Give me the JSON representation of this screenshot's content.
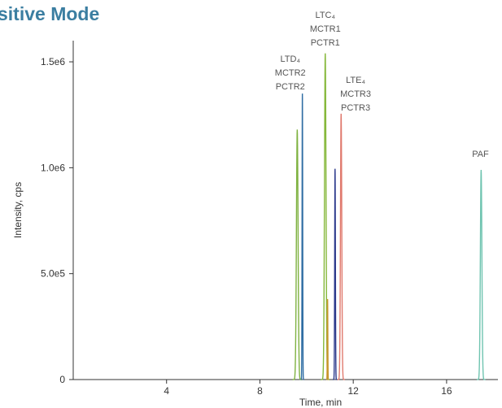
{
  "chart_data": {
    "type": "line",
    "title": "sitive Mode",
    "xlabel": "Time, min",
    "ylabel": "Intensity, cps",
    "xlim": [
      0,
      18.2
    ],
    "ylim": [
      0,
      1600000.0
    ],
    "x_ticks": [
      4,
      8,
      12,
      16
    ],
    "y_ticks": [
      {
        "value": 0,
        "label": "0"
      },
      {
        "value": 500000,
        "label": "5.0e5"
      },
      {
        "value": 1000000,
        "label": "1.0e6"
      },
      {
        "value": 1500000,
        "label": "1.5e6"
      }
    ],
    "grid": false,
    "series": [
      {
        "color": "#7fb241",
        "peak_x": 9.6,
        "peak_y": 1180000,
        "width": 0.14
      },
      {
        "color": "#2f6da3",
        "peak_x": 9.82,
        "peak_y": 1350000,
        "width": 0.05
      },
      {
        "color": "#86b83b",
        "peak_x": 10.8,
        "peak_y": 1540000,
        "width": 0.13
      },
      {
        "color": "#c9962a",
        "peak_x": 10.9,
        "peak_y": 380000,
        "width": 0.04
      },
      {
        "color": "#2d3a8c",
        "peak_x": 11.22,
        "peak_y": 995000,
        "width": 0.06
      },
      {
        "color": "#e07a6e",
        "peak_x": 11.48,
        "peak_y": 1255000,
        "width": 0.11
      },
      {
        "color": "#6fc4b0",
        "peak_x": 17.48,
        "peak_y": 990000,
        "width": 0.13
      }
    ],
    "annotations": [
      {
        "lines": [
          "LTC₄",
          "MCTR1",
          "PCTR1"
        ],
        "x": 10.8
      },
      {
        "lines": [
          "LTD₄",
          "MCTR2",
          "PCTR2"
        ],
        "x": 9.3
      },
      {
        "lines": [
          "LTE₄",
          "MCTR3",
          "PCTR3"
        ],
        "x": 12.1
      },
      {
        "lines": [
          "PAF"
        ],
        "x": 17.45
      }
    ]
  }
}
